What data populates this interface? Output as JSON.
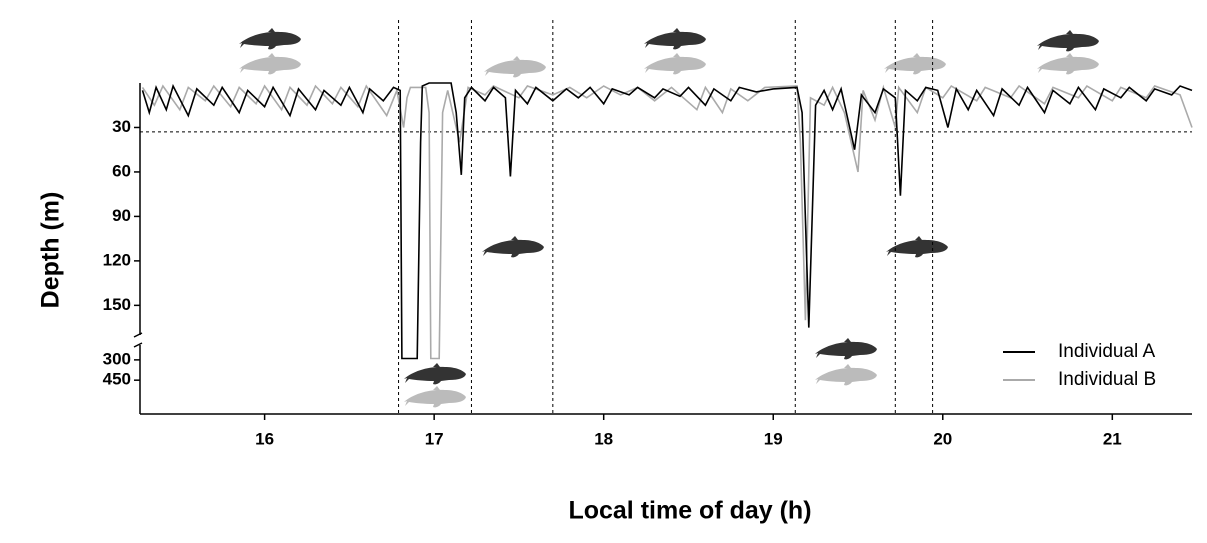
{
  "chart_data": {
    "type": "line",
    "xlabel": "Local time of day (h)",
    "ylabel": "Depth (m)",
    "xlim": [
      15.265,
      21.47
    ],
    "xticks": [
      16,
      17,
      18,
      19,
      20,
      21
    ],
    "ylim": [
      0,
      170
    ],
    "yticks": [
      30,
      60,
      90,
      120,
      150
    ],
    "lower_ylim": [
      190,
      700
    ],
    "lower_yticks": [
      300,
      450
    ],
    "y_inverted": true,
    "vlines": [
      16.79,
      17.22,
      17.7,
      19.13,
      19.72,
      19.94
    ],
    "hline": 33,
    "series": [
      {
        "name": "Individual A",
        "color": "#000000",
        "x": [
          15.28,
          15.32,
          15.36,
          15.42,
          15.46,
          15.55,
          15.6,
          15.7,
          15.75,
          15.85,
          15.9,
          16.0,
          16.05,
          16.15,
          16.2,
          16.3,
          16.35,
          16.45,
          16.5,
          16.58,
          16.62,
          16.7,
          16.76,
          16.8,
          16.81,
          16.9,
          16.92,
          16.93,
          16.97,
          17.1,
          17.13,
          17.16,
          17.18,
          17.22,
          17.3,
          17.35,
          17.42,
          17.45,
          17.48,
          17.55,
          17.6,
          17.7,
          17.78,
          17.85,
          17.92,
          18.0,
          18.05,
          18.15,
          18.2,
          18.3,
          18.35,
          18.45,
          18.5,
          18.6,
          18.65,
          18.75,
          18.8,
          18.9,
          19.0,
          19.14,
          19.17,
          19.21,
          19.25,
          19.3,
          19.35,
          19.4,
          19.48,
          19.52,
          19.6,
          19.65,
          19.72,
          19.75,
          19.78,
          19.85,
          19.9,
          19.97,
          20.03,
          20.08,
          20.15,
          20.2,
          20.3,
          20.35,
          20.45,
          20.5,
          20.6,
          20.65,
          20.75,
          20.8,
          20.9,
          20.95,
          21.05,
          21.1,
          21.2,
          21.25,
          21.35,
          21.4,
          21.47
        ],
        "values": [
          5,
          20,
          3,
          18,
          2,
          22,
          4,
          15,
          3,
          20,
          5,
          16,
          3,
          22,
          4,
          18,
          5,
          15,
          3,
          20,
          4,
          12,
          3,
          5,
          290,
          290,
          40,
          2,
          0,
          0,
          20,
          62,
          10,
          3,
          12,
          3,
          10,
          63,
          5,
          14,
          3,
          12,
          4,
          10,
          3,
          14,
          4,
          8,
          3,
          10,
          4,
          9,
          3,
          15,
          4,
          12,
          3,
          6,
          4,
          3,
          20,
          165,
          15,
          5,
          18,
          4,
          45,
          8,
          20,
          4,
          10,
          76,
          5,
          12,
          3,
          5,
          30,
          4,
          18,
          5,
          22,
          4,
          15,
          3,
          20,
          5,
          14,
          3,
          18,
          4,
          10,
          3,
          12,
          4,
          8,
          2,
          5
        ]
      },
      {
        "name": "Individual B",
        "color": "#aaaaaa",
        "x": [
          15.28,
          15.35,
          15.4,
          15.5,
          15.55,
          15.65,
          15.7,
          15.8,
          15.85,
          15.95,
          16.0,
          16.1,
          16.15,
          16.25,
          16.3,
          16.4,
          16.45,
          16.55,
          16.6,
          16.72,
          16.78,
          16.82,
          16.84,
          16.86,
          16.95,
          16.97,
          16.98,
          17.03,
          17.05,
          17.08,
          17.15,
          17.2,
          17.3,
          17.35,
          17.5,
          17.55,
          17.7,
          17.8,
          17.9,
          18.0,
          18.1,
          18.2,
          18.3,
          18.4,
          18.55,
          18.6,
          18.7,
          18.75,
          18.85,
          18.95,
          19.14,
          19.16,
          19.19,
          19.22,
          19.3,
          19.35,
          19.42,
          19.5,
          19.53,
          19.6,
          19.65,
          19.72,
          19.74,
          19.85,
          19.9,
          20.0,
          20.05,
          20.2,
          20.25,
          20.4,
          20.45,
          20.6,
          20.65,
          20.8,
          20.85,
          21.0,
          21.05,
          21.2,
          21.25,
          21.4,
          21.47
        ],
        "values": [
          3,
          15,
          2,
          18,
          3,
          12,
          2,
          16,
          3,
          14,
          2,
          18,
          3,
          15,
          2,
          14,
          3,
          16,
          2,
          22,
          5,
          30,
          10,
          3,
          3,
          20,
          290,
          290,
          20,
          5,
          40,
          3,
          8,
          2,
          10,
          2,
          8,
          3,
          10,
          2,
          8,
          3,
          12,
          3,
          18,
          3,
          20,
          4,
          12,
          3,
          2,
          40,
          160,
          10,
          15,
          3,
          20,
          60,
          5,
          25,
          3,
          30,
          3,
          20,
          3,
          10,
          2,
          12,
          3,
          10,
          2,
          14,
          3,
          10,
          2,
          12,
          3,
          10,
          2,
          8,
          30
        ]
      }
    ]
  }
}
